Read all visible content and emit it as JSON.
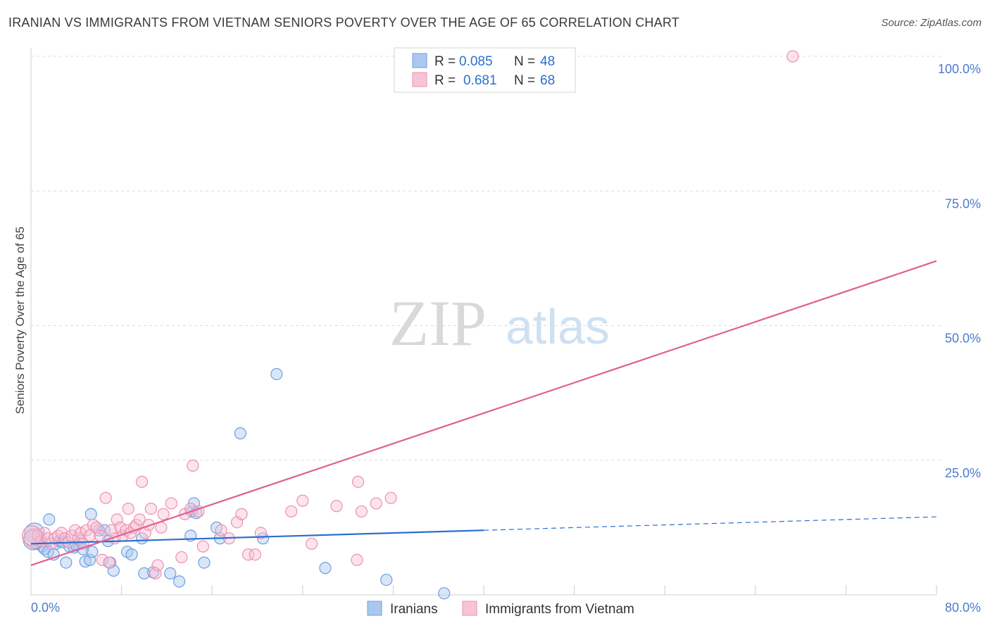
{
  "title": "IRANIAN VS IMMIGRANTS FROM VIETNAM SENIORS POVERTY OVER THE AGE OF 65 CORRELATION CHART",
  "source": "Source: ZipAtlas.com",
  "watermark": {
    "zip": "ZIP",
    "atlas": "atlas"
  },
  "chart_data": {
    "type": "scatter",
    "ylabel": "Seniors Poverty Over the Age of 65",
    "xlabel": "",
    "xlim": [
      0,
      80
    ],
    "ylim": [
      0,
      100
    ],
    "x_tick_labels": [
      {
        "value": 0,
        "label": "0.0%"
      },
      {
        "value": 80,
        "label": "80.0%"
      }
    ],
    "y_tick_labels": [
      {
        "value": 25,
        "label": "25.0%"
      },
      {
        "value": 50,
        "label": "50.0%"
      },
      {
        "value": 75,
        "label": "75.0%"
      },
      {
        "value": 100,
        "label": "100.0%"
      }
    ],
    "grid": true,
    "stats_box": [
      {
        "r_label": "R =",
        "r_value": "0.085",
        "n_label": "N =",
        "n_value": "48"
      },
      {
        "r_label": "R =",
        "r_value": "0.681",
        "n_label": "N =",
        "n_value": "68"
      }
    ],
    "series": [
      {
        "name": "Iranians",
        "color": "#6c9fe0",
        "fill": "#aac8ef",
        "line_color": "#2a6fcf",
        "trend": {
          "x0": 0,
          "y0": 9.5,
          "x1": 80,
          "y1": 14.5,
          "solid_until": 40
        },
        "points": [
          [
            0.3,
            11.5
          ],
          [
            0.5,
            9.5
          ],
          [
            0.8,
            10.5
          ],
          [
            1.0,
            9.0
          ],
          [
            1.2,
            8.5
          ],
          [
            1.5,
            8.0
          ],
          [
            1.6,
            14.0
          ],
          [
            2.0,
            7.5
          ],
          [
            2.2,
            9.5
          ],
          [
            2.5,
            10.0
          ],
          [
            2.8,
            9.8
          ],
          [
            3.0,
            10.5
          ],
          [
            3.1,
            6.0
          ],
          [
            3.4,
            9.0
          ],
          [
            3.8,
            8.8
          ],
          [
            4.0,
            9.2
          ],
          [
            4.4,
            10.0
          ],
          [
            4.6,
            8.5
          ],
          [
            4.8,
            6.2
          ],
          [
            5.2,
            6.5
          ],
          [
            5.4,
            8.0
          ],
          [
            5.3,
            15.0
          ],
          [
            6.0,
            12.0
          ],
          [
            6.5,
            12.0
          ],
          [
            6.8,
            10.0
          ],
          [
            7.0,
            6.0
          ],
          [
            7.3,
            4.5
          ],
          [
            8.5,
            8.0
          ],
          [
            8.9,
            7.5
          ],
          [
            9.8,
            10.5
          ],
          [
            10.0,
            4.0
          ],
          [
            10.8,
            4.2
          ],
          [
            12.3,
            4.0
          ],
          [
            13.1,
            2.5
          ],
          [
            14.1,
            11.0
          ],
          [
            14.2,
            15.5
          ],
          [
            14.4,
            17.0
          ],
          [
            14.6,
            15.2
          ],
          [
            15.3,
            6.0
          ],
          [
            16.4,
            12.5
          ],
          [
            16.7,
            10.5
          ],
          [
            18.5,
            30.0
          ],
          [
            20.5,
            10.5
          ],
          [
            21.7,
            41.0
          ],
          [
            26.0,
            5.0
          ],
          [
            31.4,
            2.8
          ],
          [
            36.5,
            0.3
          ],
          [
            0.2,
            10.2
          ]
        ]
      },
      {
        "name": "Immigrants from Vietnam",
        "color": "#ee8fb0",
        "fill": "#f7c4d5",
        "line_color": "#e0608f",
        "trend": {
          "x0": 0,
          "y0": 5.5,
          "x1": 80,
          "y1": 62.0,
          "solid_until": 80
        },
        "points": [
          [
            0.3,
            10.5
          ],
          [
            0.6,
            11.0
          ],
          [
            0.9,
            10.0
          ],
          [
            1.2,
            11.5
          ],
          [
            1.5,
            10.5
          ],
          [
            1.8,
            9.5
          ],
          [
            2.1,
            10.5
          ],
          [
            2.4,
            11.0
          ],
          [
            2.7,
            11.5
          ],
          [
            3.0,
            10.5
          ],
          [
            3.3,
            9.8
          ],
          [
            3.6,
            11.0
          ],
          [
            3.9,
            12.0
          ],
          [
            4.2,
            10.5
          ],
          [
            4.4,
            11.5
          ],
          [
            4.6,
            9.5
          ],
          [
            4.9,
            12.0
          ],
          [
            5.2,
            11.0
          ],
          [
            5.5,
            13.0
          ],
          [
            5.8,
            12.5
          ],
          [
            6.1,
            11.0
          ],
          [
            6.3,
            6.5
          ],
          [
            6.6,
            18.0
          ],
          [
            6.9,
            6.0
          ],
          [
            7.1,
            12.0
          ],
          [
            7.4,
            10.5
          ],
          [
            7.6,
            14.0
          ],
          [
            7.9,
            12.5
          ],
          [
            8.1,
            11.0
          ],
          [
            8.4,
            12.0
          ],
          [
            8.6,
            16.0
          ],
          [
            8.8,
            11.5
          ],
          [
            9.1,
            12.5
          ],
          [
            9.3,
            13.0
          ],
          [
            9.6,
            14.0
          ],
          [
            9.8,
            21.0
          ],
          [
            10.1,
            11.5
          ],
          [
            10.4,
            13.0
          ],
          [
            10.6,
            16.0
          ],
          [
            11.0,
            4.0
          ],
          [
            11.2,
            5.5
          ],
          [
            11.5,
            12.5
          ],
          [
            11.7,
            15.0
          ],
          [
            12.4,
            17.0
          ],
          [
            13.3,
            7.0
          ],
          [
            13.6,
            15.0
          ],
          [
            14.1,
            16.0
          ],
          [
            14.3,
            24.0
          ],
          [
            14.8,
            15.5
          ],
          [
            15.2,
            9.0
          ],
          [
            16.8,
            12.0
          ],
          [
            17.5,
            10.5
          ],
          [
            18.2,
            13.5
          ],
          [
            18.6,
            15.0
          ],
          [
            19.2,
            7.5
          ],
          [
            19.8,
            7.5
          ],
          [
            20.3,
            11.5
          ],
          [
            23.0,
            15.5
          ],
          [
            24.0,
            17.5
          ],
          [
            24.8,
            9.5
          ],
          [
            27.0,
            16.5
          ],
          [
            28.8,
            6.5
          ],
          [
            28.9,
            21.0
          ],
          [
            29.2,
            15.5
          ],
          [
            30.5,
            17.0
          ],
          [
            31.8,
            18.0
          ],
          [
            67.3,
            100.0
          ],
          [
            0.1,
            11.0
          ]
        ]
      }
    ]
  },
  "legend": {
    "items": [
      {
        "label": "Iranians"
      },
      {
        "label": "Immigrants from Vietnam"
      }
    ]
  }
}
